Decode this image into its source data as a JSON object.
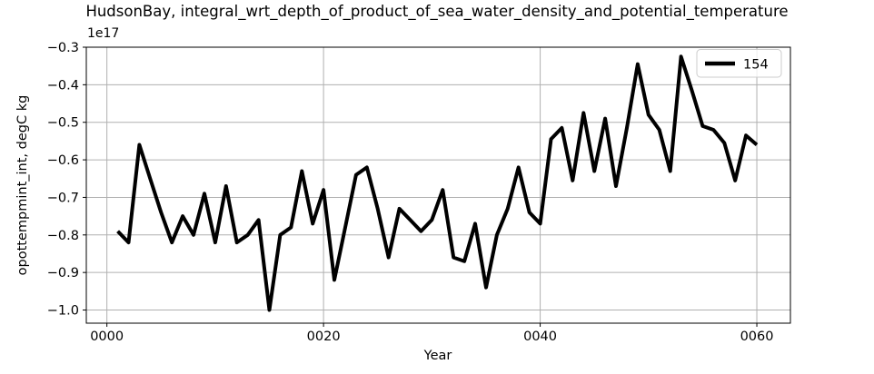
{
  "chart_data": {
    "type": "line",
    "title": "HudsonBay, integral_wrt_depth_of_product_of_sea_water_density_and_potential_temperature",
    "xlabel": "Year",
    "ylabel": "opottempmint_int, degC kg",
    "offset_text": "1e17",
    "grid": true,
    "legend_position": "upper right",
    "xlim": [
      -1.9,
      63.1
    ],
    "ylim": [
      -1.035,
      -0.3
    ],
    "x_ticks": [
      {
        "value": 0,
        "label": "0000"
      },
      {
        "value": 20,
        "label": "0020"
      },
      {
        "value": 40,
        "label": "0040"
      },
      {
        "value": 60,
        "label": "0060"
      }
    ],
    "y_ticks": [
      {
        "value": -0.3,
        "label": "−0.3"
      },
      {
        "value": -0.4,
        "label": "−0.4"
      },
      {
        "value": -0.5,
        "label": "−0.5"
      },
      {
        "value": -0.6,
        "label": "−0.6"
      },
      {
        "value": -0.7,
        "label": "−0.7"
      },
      {
        "value": -0.8,
        "label": "−0.8"
      },
      {
        "value": -0.9,
        "label": "−0.9"
      },
      {
        "value": -1.0,
        "label": "−1.0"
      }
    ],
    "series": [
      {
        "name": "154",
        "color": "#000000",
        "linewidth": 4,
        "x": [
          1,
          2,
          3,
          4,
          5,
          6,
          7,
          8,
          9,
          10,
          11,
          12,
          13,
          14,
          15,
          16,
          17,
          18,
          19,
          20,
          21,
          22,
          23,
          24,
          25,
          26,
          27,
          28,
          29,
          30,
          31,
          32,
          33,
          34,
          35,
          36,
          37,
          38,
          39,
          40,
          41,
          42,
          43,
          44,
          45,
          46,
          47,
          48,
          49,
          50,
          51,
          52,
          53,
          54,
          55,
          56,
          57,
          58,
          59,
          60
        ],
        "y": [
          -0.79,
          -0.82,
          -0.56,
          -0.65,
          -0.74,
          -0.82,
          -0.75,
          -0.8,
          -0.69,
          -0.82,
          -0.67,
          -0.82,
          -0.8,
          -0.76,
          -1.0,
          -0.8,
          -0.78,
          -0.63,
          -0.77,
          -0.68,
          -0.92,
          -0.78,
          -0.64,
          -0.62,
          -0.73,
          -0.86,
          -0.73,
          -0.76,
          -0.79,
          -0.76,
          -0.68,
          -0.86,
          -0.87,
          -0.77,
          -0.94,
          -0.8,
          -0.73,
          -0.62,
          -0.74,
          -0.77,
          -0.545,
          -0.515,
          -0.655,
          -0.475,
          -0.63,
          -0.49,
          -0.67,
          -0.515,
          -0.345,
          -0.48,
          -0.52,
          -0.63,
          -0.325,
          -0.415,
          -0.51,
          -0.52,
          -0.555,
          -0.655,
          -0.535,
          -0.56
        ]
      }
    ],
    "legend": {
      "entries": [
        {
          "label": "154",
          "color": "#000000"
        }
      ]
    }
  },
  "colors": {
    "background": "#ffffff",
    "line": "#000000",
    "grid": "#b0b0b0",
    "spine": "#000000",
    "legend_border": "#cccccc",
    "text": "#000000"
  }
}
